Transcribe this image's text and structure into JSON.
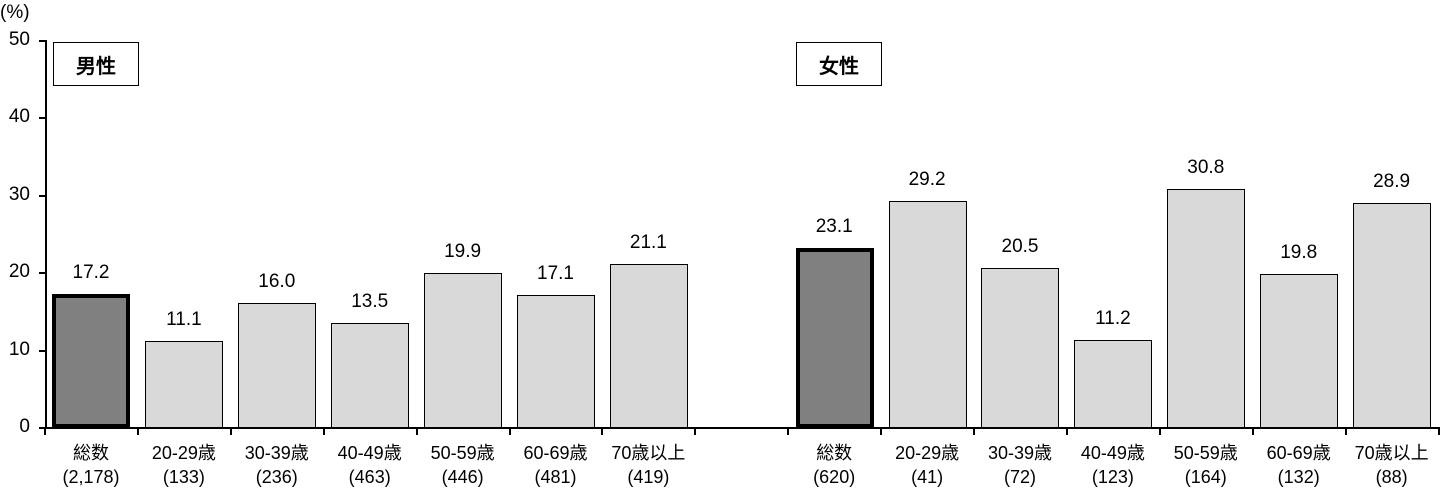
{
  "chart_data": {
    "type": "bar",
    "title": "",
    "ylabel": "(%)",
    "xlabel": "",
    "ylim": [
      0,
      50
    ],
    "yticks": [
      0,
      10,
      20,
      30,
      40,
      50
    ],
    "grid": false,
    "legend": null,
    "panels": [
      {
        "label": "男性",
        "categories": [
          "総数",
          "20-29歳",
          "30-39歳",
          "40-49歳",
          "50-59歳",
          "60-69歳",
          "70歳以上"
        ],
        "sample_sizes": [
          "(2,178)",
          "(133)",
          "(236)",
          "(463)",
          "(446)",
          "(481)",
          "(419)"
        ],
        "values": [
          17.2,
          11.1,
          16.0,
          13.5,
          19.9,
          17.1,
          21.1
        ],
        "value_labels": [
          "17.2",
          "11.1",
          "16.0",
          "13.5",
          "19.9",
          "17.1",
          "21.1"
        ]
      },
      {
        "label": "女性",
        "categories": [
          "総数",
          "20-29歳",
          "30-39歳",
          "40-49歳",
          "50-59歳",
          "60-69歳",
          "70歳以上"
        ],
        "sample_sizes": [
          "(620)",
          "(41)",
          "(72)",
          "(123)",
          "(164)",
          "(132)",
          "(88)"
        ],
        "values": [
          23.1,
          29.2,
          20.5,
          11.2,
          30.8,
          19.8,
          28.9
        ],
        "value_labels": [
          "23.1",
          "29.2",
          "20.5",
          "11.2",
          "30.8",
          "19.8",
          "28.9"
        ]
      }
    ],
    "colors": {
      "total_bar": "#808080",
      "age_bar": "#d9d9d9",
      "border": "#000000"
    },
    "annotations": [
      "総数 bars highlighted with dark fill and thick border"
    ]
  },
  "axis": {
    "unit": "(%)",
    "ytick_labels": [
      "0",
      "10",
      "20",
      "30",
      "40",
      "50"
    ]
  }
}
